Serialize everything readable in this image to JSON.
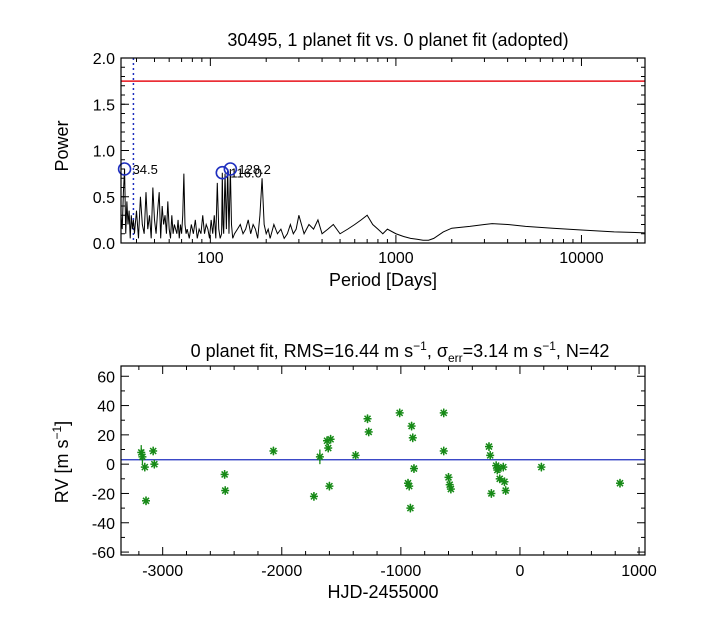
{
  "chart_data": [
    {
      "type": "line",
      "title": "30495,  1 planet fit vs. 0 planet fit (adopted)",
      "xlabel": "Period [Days]",
      "ylabel": "Power",
      "xscale": "log",
      "xlim": [
        33,
        22000
      ],
      "ylim": [
        0,
        2.0
      ],
      "xticks": [
        {
          "value": 100,
          "label": "100"
        },
        {
          "value": 1000,
          "label": "1000"
        },
        {
          "value": 10000,
          "label": "10000"
        }
      ],
      "yticks": [
        {
          "value": 0,
          "label": "0.0"
        },
        {
          "value": 0.5,
          "label": "0.5"
        },
        {
          "value": 1.0,
          "label": "1.0"
        },
        {
          "value": 1.5,
          "label": "1.5"
        },
        {
          "value": 2.0,
          "label": "2.0"
        }
      ],
      "threshold_line": {
        "value": 1.75,
        "color": "#e8111a"
      },
      "dotted_line_period": 38.5,
      "peaks": [
        {
          "period": 34.5,
          "power": 0.8,
          "label": "34.5"
        },
        {
          "period": 116.0,
          "power": 0.76,
          "label": "116.0"
        },
        {
          "period": 128.2,
          "power": 0.8,
          "label": "128.2"
        }
      ],
      "series": [
        {
          "name": "periodogram",
          "x": [
            33.0,
            33.5,
            34.0,
            34.5,
            35.0,
            35.5,
            36.0,
            36.5,
            37.0,
            37.5,
            38.0,
            38.5,
            39.0,
            40.0,
            41.0,
            42.0,
            43.0,
            44.0,
            45.0,
            46.0,
            47.0,
            48.0,
            49.0,
            50.0,
            51.0,
            52.0,
            53.0,
            54.0,
            55.0,
            56.0,
            57.0,
            58.0,
            59.0,
            60.0,
            61.0,
            62.0,
            63.0,
            64.0,
            65.0,
            66.0,
            67.0,
            68.0,
            69.0,
            70.0,
            71.0,
            72.0,
            73.0,
            74.0,
            75.0,
            77.0,
            79.0,
            81.0,
            83.0,
            85.0,
            87.0,
            89.0,
            91.0,
            93.0,
            95.0,
            97.0,
            99.0,
            101.0,
            103.0,
            105.0,
            107.0,
            109.0,
            111.0,
            113.0,
            115.0,
            116.0,
            117.0,
            118.0,
            120.0,
            122.0,
            124.0,
            126.0,
            128.2,
            130.0,
            132.0,
            135.0,
            140.0,
            145.0,
            150.0,
            155.0,
            160.0,
            165.0,
            170.0,
            175.0,
            180.0,
            185.0,
            190.0,
            195.0,
            200.0,
            205.0,
            210.0,
            220.0,
            230.0,
            240.0,
            250.0,
            260.0,
            270.0,
            280.0,
            290.0,
            300.0,
            320.0,
            340.0,
            360.0,
            380.0,
            400.0,
            430.0,
            460.0,
            500.0,
            550.0,
            600.0,
            650.0,
            700.0,
            750.0,
            800.0,
            850.0,
            900.0,
            1000.0,
            1100.0,
            1200.0,
            1300.0,
            1400.0,
            1500.0,
            1600.0,
            1800.0,
            2000.0,
            2500.0,
            3000.0,
            3300.0,
            4000.0,
            5000.0,
            7000.0,
            10000.0,
            15000.0,
            22000.0
          ],
          "values": [
            0.3,
            0.15,
            0.55,
            0.8,
            0.1,
            0.45,
            0.2,
            0.35,
            0.05,
            0.3,
            0.15,
            0.25,
            0.1,
            0.35,
            0.05,
            0.5,
            0.2,
            0.1,
            0.55,
            0.15,
            0.3,
            0.05,
            0.6,
            0.25,
            0.1,
            0.35,
            0.55,
            0.05,
            0.4,
            0.2,
            0.3,
            0.1,
            0.45,
            0.15,
            0.05,
            0.3,
            0.1,
            0.2,
            0.15,
            0.1,
            0.25,
            0.05,
            0.2,
            0.1,
            0.3,
            0.75,
            0.2,
            0.1,
            0.15,
            0.05,
            0.2,
            0.1,
            0.25,
            0.05,
            0.15,
            0.1,
            0.3,
            0.1,
            0.2,
            0.15,
            0.05,
            0.25,
            0.1,
            0.3,
            0.05,
            0.65,
            0.15,
            0.05,
            0.1,
            0.76,
            0.2,
            0.1,
            0.75,
            0.15,
            0.8,
            0.1,
            0.8,
            0.2,
            0.05,
            0.1,
            0.15,
            0.2,
            0.1,
            0.15,
            0.25,
            0.1,
            0.2,
            0.15,
            0.05,
            0.3,
            0.7,
            0.2,
            0.1,
            0.15,
            0.05,
            0.2,
            0.1,
            0.15,
            0.05,
            0.1,
            0.2,
            0.1,
            0.15,
            0.3,
            0.1,
            0.2,
            0.15,
            0.25,
            0.1,
            0.15,
            0.2,
            0.1,
            0.15,
            0.2,
            0.25,
            0.3,
            0.2,
            0.15,
            0.1,
            0.15,
            0.1,
            0.07,
            0.05,
            0.04,
            0.03,
            0.03,
            0.05,
            0.12,
            0.16,
            0.18,
            0.2,
            0.21,
            0.2,
            0.18,
            0.16,
            0.14,
            0.12,
            0.11
          ]
        }
      ]
    },
    {
      "type": "scatter",
      "title": "0 planet fit, RMS=16.44 m s⁻¹, σerr=3.14 m s⁻¹, N=42",
      "title_parts": {
        "pre": "0 planet fit, RMS=16.44 m s",
        "sup1": "−1",
        "mid": ", σ",
        "sub": "err",
        "post": "=3.14 m s",
        "sup2": "−1",
        "tail": ", N=42"
      },
      "xlabel": "HJD-2455000",
      "ylabel": "RV [m s⁻¹]",
      "ylabel_parts": {
        "pre": "RV [m s",
        "sup": "−1",
        "post": "]"
      },
      "xlim": [
        -3350,
        1050
      ],
      "ylim": [
        -62,
        67
      ],
      "xticks": [
        {
          "value": -3000,
          "label": "-3000"
        },
        {
          "value": -2000,
          "label": "-2000"
        },
        {
          "value": -1000,
          "label": "-1000"
        },
        {
          "value": 0,
          "label": "0"
        },
        {
          "value": 1000,
          "label": "1000"
        }
      ],
      "yticks": [
        {
          "value": -60,
          "label": "-60"
        },
        {
          "value": -40,
          "label": "-40"
        },
        {
          "value": -20,
          "label": "-20"
        },
        {
          "value": 0,
          "label": "0"
        },
        {
          "value": 20,
          "label": "20"
        },
        {
          "value": 40,
          "label": "40"
        },
        {
          "value": 60,
          "label": "60"
        }
      ],
      "mean_line": {
        "value": 3,
        "color": "#1f2fbf"
      },
      "marker_color": "#178a17",
      "series": [
        {
          "name": "RV",
          "points": [
            {
              "x": -3180,
              "y": 8,
              "err": 5
            },
            {
              "x": -3170,
              "y": 5,
              "err": 5
            },
            {
              "x": -3150,
              "y": -2,
              "err": 3
            },
            {
              "x": -3140,
              "y": -25,
              "err": 3
            },
            {
              "x": -3080,
              "y": 9,
              "err": 3
            },
            {
              "x": -3070,
              "y": 0,
              "err": 3
            },
            {
              "x": -2480,
              "y": -7,
              "err": 3
            },
            {
              "x": -2475,
              "y": -18,
              "err": 3
            },
            {
              "x": -2070,
              "y": 9,
              "err": 3
            },
            {
              "x": -1730,
              "y": -22,
              "err": 3
            },
            {
              "x": -1680,
              "y": 5,
              "err": 5
            },
            {
              "x": -1620,
              "y": 16,
              "err": 3
            },
            {
              "x": -1610,
              "y": 11,
              "err": 3
            },
            {
              "x": -1600,
              "y": -15,
              "err": 3
            },
            {
              "x": -1590,
              "y": 17,
              "err": 3
            },
            {
              "x": -1380,
              "y": 6,
              "err": 3
            },
            {
              "x": -1280,
              "y": 31,
              "err": 3
            },
            {
              "x": -1270,
              "y": 22,
              "err": 3
            },
            {
              "x": -1010,
              "y": 35,
              "err": 3
            },
            {
              "x": -940,
              "y": -13,
              "err": 3
            },
            {
              "x": -930,
              "y": -15,
              "err": 3
            },
            {
              "x": -920,
              "y": -30,
              "err": 3
            },
            {
              "x": -910,
              "y": 26,
              "err": 3
            },
            {
              "x": -900,
              "y": 18,
              "err": 3
            },
            {
              "x": -890,
              "y": -3,
              "err": 3
            },
            {
              "x": -640,
              "y": 35,
              "err": 3
            },
            {
              "x": -600,
              "y": -9,
              "err": 3
            },
            {
              "x": -590,
              "y": -14,
              "err": 3
            },
            {
              "x": -580,
              "y": -17,
              "err": 3
            },
            {
              "x": -640,
              "y": 9,
              "err": 3
            },
            {
              "x": -260,
              "y": 12,
              "err": 3
            },
            {
              "x": -250,
              "y": 6,
              "err": 3
            },
            {
              "x": -240,
              "y": -20,
              "err": 3
            },
            {
              "x": -200,
              "y": -1,
              "err": 3
            },
            {
              "x": -190,
              "y": -4,
              "err": 3
            },
            {
              "x": -180,
              "y": -3,
              "err": 3
            },
            {
              "x": -170,
              "y": -10,
              "err": 3
            },
            {
              "x": -140,
              "y": -2,
              "err": 3
            },
            {
              "x": -130,
              "y": -12,
              "err": 3
            },
            {
              "x": -120,
              "y": -18,
              "err": 3
            },
            {
              "x": 180,
              "y": -2,
              "err": 3
            },
            {
              "x": 840,
              "y": -13,
              "err": 3
            }
          ]
        }
      ]
    }
  ]
}
